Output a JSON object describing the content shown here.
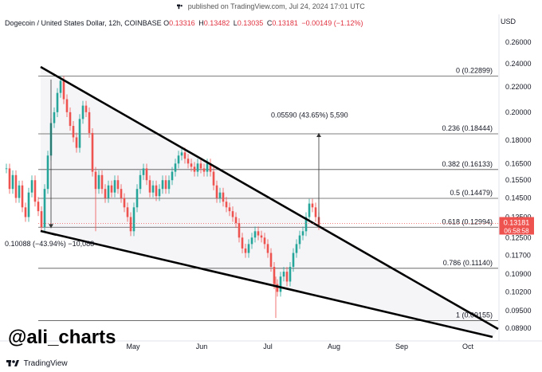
{
  "header": {
    "published": "published on TradingView.com, Jul 24, 2024 17:01 UTC"
  },
  "symbol": {
    "name": "Dogecoin / United States Dollar, 12h, COINBASE",
    "o_label": "O",
    "o": "0.13316",
    "h_label": "H",
    "h": "0.13482",
    "l_label": "L",
    "l": "0.13035",
    "c_label": "C",
    "c": "0.13181",
    "change": "−0.00149 (−1.12%)"
  },
  "currency": "USD",
  "colors": {
    "up": "#26a69a",
    "down": "#ef5350",
    "price_tag": "#ef5350",
    "line": "#000000"
  },
  "chart_data": {
    "type": "candlestick",
    "x_axis_labels": [
      "May",
      "Jun",
      "Jul",
      "Aug",
      "Sep",
      "Oct"
    ],
    "y_axis_labels": [
      "0.26000",
      "0.24000",
      "0.22000",
      "0.20000",
      "0.18000",
      "0.16500",
      "0.15500",
      "0.14500",
      "0.13500",
      "0.12500",
      "0.11700",
      "0.10900",
      "0.10200",
      "0.09500",
      "0.08900"
    ],
    "last_price": "0.13181",
    "countdown": "06:58:58",
    "fib_levels": [
      {
        "label": "0 (0.22899)",
        "value": 0.22899
      },
      {
        "label": "0.236 (0.18444)",
        "value": 0.18444
      },
      {
        "label": "0.382 (0.16133)",
        "value": 0.16133
      },
      {
        "label": "0.5 (0.14479)",
        "value": 0.14479
      },
      {
        "label": "0.618 (0.12994)",
        "value": 0.12994
      },
      {
        "label": "0.786 (0.11140)",
        "value": 0.1114
      },
      {
        "label": "1 (0.09155)",
        "value": 0.09155
      }
    ],
    "annotations": {
      "drop": "0.10088 (−43.94%) −10,088",
      "target": "0.05590 (43.65%) 5,590"
    }
  },
  "watermark": "@ali_charts",
  "footer": {
    "brand": "TradingView"
  }
}
